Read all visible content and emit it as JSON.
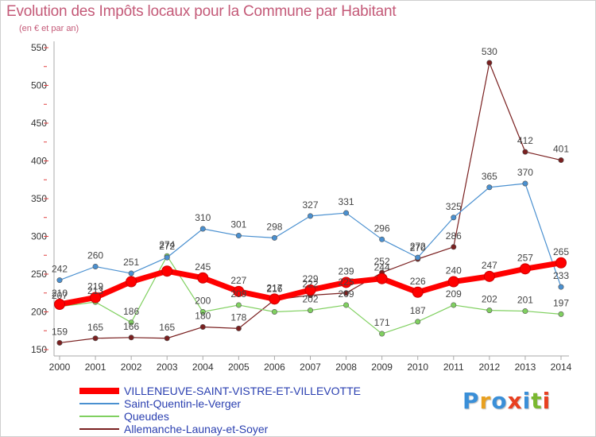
{
  "header": {
    "title": "Evolution des Impôts locaux pour la Commune par Habitant",
    "subtitle": "(en € et par an)"
  },
  "logo": {
    "text": "Proxiti",
    "letter_colors": [
      "#3a8fd8",
      "#e8a020",
      "#3a8fd8",
      "#e84020",
      "#3a8fd8",
      "#7ab830",
      "#e84020"
    ]
  },
  "chart_data": {
    "type": "line",
    "title": "Evolution des Impôts locaux pour la Commune par Habitant",
    "subtitle": "(en € et par an)",
    "x": [
      "2000",
      "2001",
      "2002",
      "2003",
      "2004",
      "2005",
      "2006",
      "2007",
      "2008",
      "2009",
      "2010",
      "2011",
      "2012",
      "2013",
      "2014"
    ],
    "ylim": [
      150,
      550
    ],
    "yticks": [
      150,
      200,
      250,
      300,
      350,
      400,
      450,
      500,
      550
    ],
    "grid": false,
    "legend_position": "bottom-left",
    "series": [
      {
        "name": "VILLENEUVE-SAINT-VISTRE-ET-VILLEVOTTE",
        "color": "#ff0000",
        "values": [
          210,
          219,
          240,
          254,
          245,
          227,
          217,
          229,
          239,
          244,
          226,
          240,
          247,
          257,
          265
        ],
        "labels": [
          "210",
          "219",
          "",
          "",
          "245",
          "227",
          "217",
          "229",
          "239",
          "244",
          "226",
          "240",
          "247",
          "257",
          "265"
        ]
      },
      {
        "name": "Saint-Quentin-le-Verger",
        "color": "#4a90d0",
        "values": [
          242,
          260,
          251,
          272,
          310,
          301,
          298,
          327,
          331,
          296,
          272,
          325,
          365,
          370,
          233
        ],
        "labels": [
          "242",
          "260",
          "251",
          "272",
          "310",
          "301",
          "298",
          "327",
          "331",
          "296",
          "272",
          "325",
          "365",
          "370",
          "233"
        ]
      },
      {
        "name": "Queudes",
        "color": "#80d060",
        "values": [
          207,
          213,
          186,
          274,
          200,
          209,
          200,
          202,
          209,
          171,
          187,
          209,
          202,
          201,
          197
        ],
        "labels": [
          "207",
          "213",
          "186",
          "274",
          "200",
          "209",
          "",
          "202",
          "209",
          "171",
          "187",
          "209",
          "202",
          "201",
          "197"
        ]
      },
      {
        "name": "Allemanche-Launay-et-Soyer",
        "color": "#7a2020",
        "values": [
          159,
          165,
          166,
          165,
          180,
          178,
          216,
          222,
          225,
          252,
          270,
          286,
          530,
          412,
          401
        ],
        "labels": [
          "159",
          "165",
          "166",
          "165",
          "180",
          "178",
          "216",
          "222",
          "225",
          "252",
          "270",
          "286",
          "530",
          "412",
          "401"
        ]
      }
    ]
  }
}
